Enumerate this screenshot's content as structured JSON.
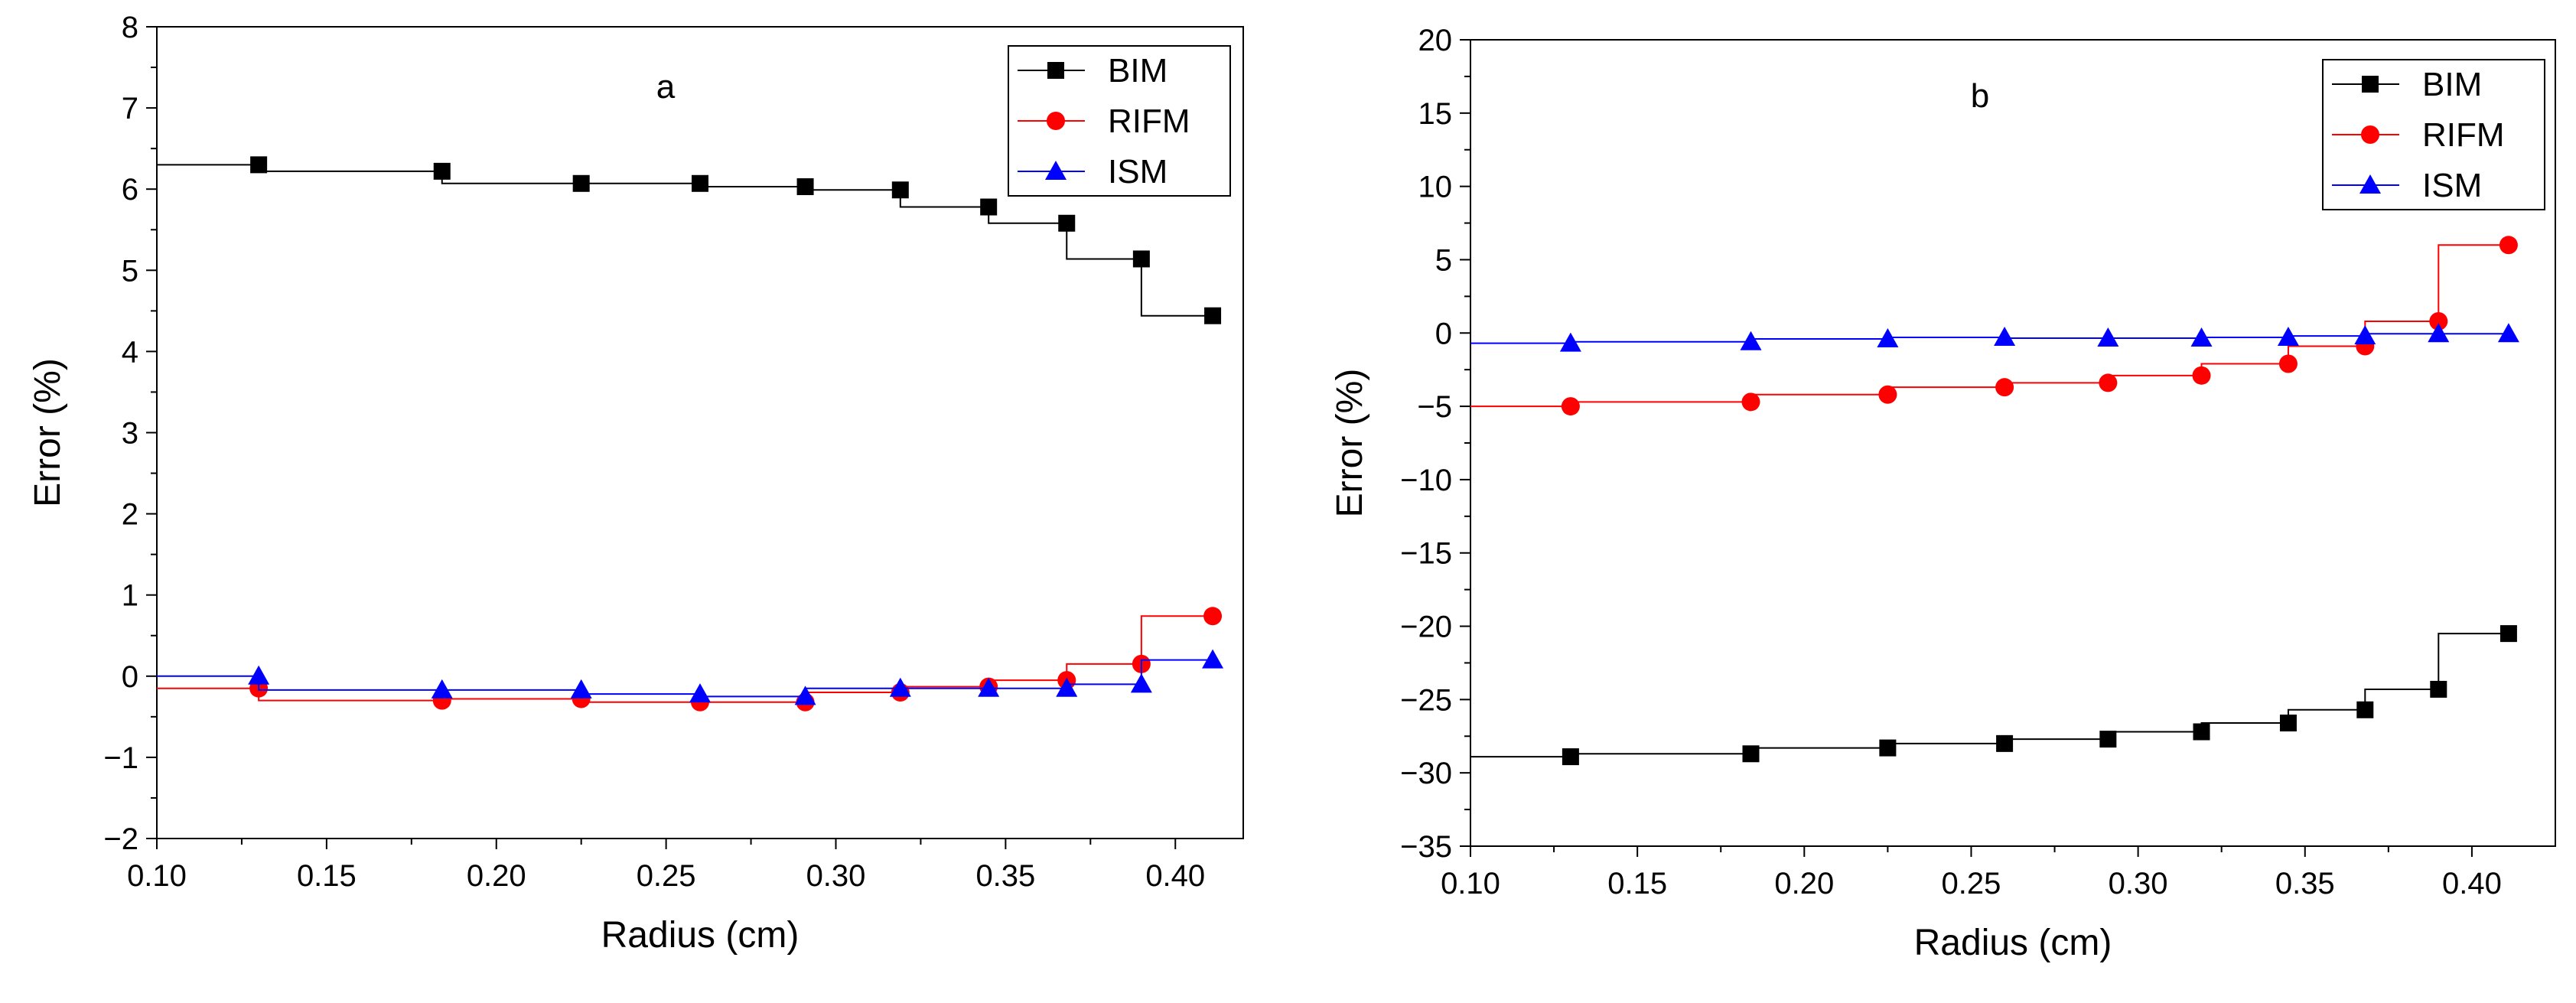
{
  "chart_data": [
    {
      "type": "line",
      "panel_label": "a",
      "xlabel": "Radius (cm)",
      "ylabel": "Error (%)",
      "xlim": [
        0.1,
        0.42
      ],
      "ylim": [
        -2,
        8
      ],
      "xticks": [
        0.1,
        0.15,
        0.2,
        0.25,
        0.3,
        0.35,
        0.4
      ],
      "xtick_labels": [
        "0.10",
        "0.15",
        "0.20",
        "0.25",
        "0.30",
        "0.35",
        "0.40"
      ],
      "yticks": [
        -2,
        -1,
        0,
        1,
        2,
        3,
        4,
        5,
        6,
        7,
        8
      ],
      "ytick_labels": [
        "−2",
        "−1",
        "0",
        "1",
        "2",
        "3",
        "4",
        "5",
        "6",
        "7",
        "8"
      ],
      "step_line_start_x": 0.1,
      "legend_position": "top-right",
      "grid": false,
      "x": [
        0.13,
        0.184,
        0.225,
        0.26,
        0.291,
        0.319,
        0.345,
        0.368,
        0.39,
        0.411
      ],
      "series": [
        {
          "name": "BIM",
          "marker": "square",
          "color": "#000000",
          "values": [
            6.3,
            6.22,
            6.07,
            6.07,
            6.03,
            5.99,
            5.78,
            5.58,
            5.14,
            4.44
          ]
        },
        {
          "name": "RIFM",
          "marker": "circle",
          "color": "#ff0000",
          "values": [
            -0.15,
            -0.3,
            -0.28,
            -0.32,
            -0.32,
            -0.2,
            -0.13,
            -0.05,
            0.15,
            0.74
          ]
        },
        {
          "name": "ISM",
          "marker": "triangle",
          "color": "#0000ff",
          "values": [
            0.0,
            -0.17,
            -0.17,
            -0.22,
            -0.25,
            -0.15,
            -0.15,
            -0.15,
            -0.1,
            0.2
          ]
        }
      ]
    },
    {
      "type": "line",
      "panel_label": "b",
      "xlabel": "Radius (cm)",
      "ylabel": "Error (%)",
      "xlim": [
        0.1,
        0.425
      ],
      "ylim": [
        -35,
        20
      ],
      "xticks": [
        0.1,
        0.15,
        0.2,
        0.25,
        0.3,
        0.35,
        0.4
      ],
      "xtick_labels": [
        "0.10",
        "0.15",
        "0.20",
        "0.25",
        "0.30",
        "0.35",
        "0.40"
      ],
      "yticks": [
        -35,
        -30,
        -25,
        -20,
        -15,
        -10,
        -5,
        0,
        5,
        10,
        15,
        20
      ],
      "ytick_labels": [
        "−35",
        "−30",
        "−25",
        "−20",
        "−15",
        "−10",
        "−5",
        "0",
        "5",
        "10",
        "15",
        "20"
      ],
      "step_line_start_x": 0.1,
      "legend_position": "top-right",
      "grid": false,
      "x": [
        0.13,
        0.184,
        0.225,
        0.26,
        0.291,
        0.319,
        0.345,
        0.368,
        0.39,
        0.411
      ],
      "series": [
        {
          "name": "BIM",
          "marker": "square",
          "color": "#000000",
          "values": [
            -28.9,
            -28.7,
            -28.3,
            -28.0,
            -27.7,
            -27.2,
            -26.6,
            -25.7,
            -24.3,
            -20.5
          ]
        },
        {
          "name": "RIFM",
          "marker": "circle",
          "color": "#ff0000",
          "values": [
            -5.0,
            -4.7,
            -4.2,
            -3.7,
            -3.4,
            -2.9,
            -2.1,
            -0.9,
            0.8,
            6.0
          ]
        },
        {
          "name": "ISM",
          "marker": "triangle",
          "color": "#0000ff",
          "values": [
            -0.7,
            -0.6,
            -0.4,
            -0.3,
            -0.35,
            -0.35,
            -0.3,
            -0.2,
            -0.05,
            -0.05
          ]
        }
      ]
    }
  ]
}
